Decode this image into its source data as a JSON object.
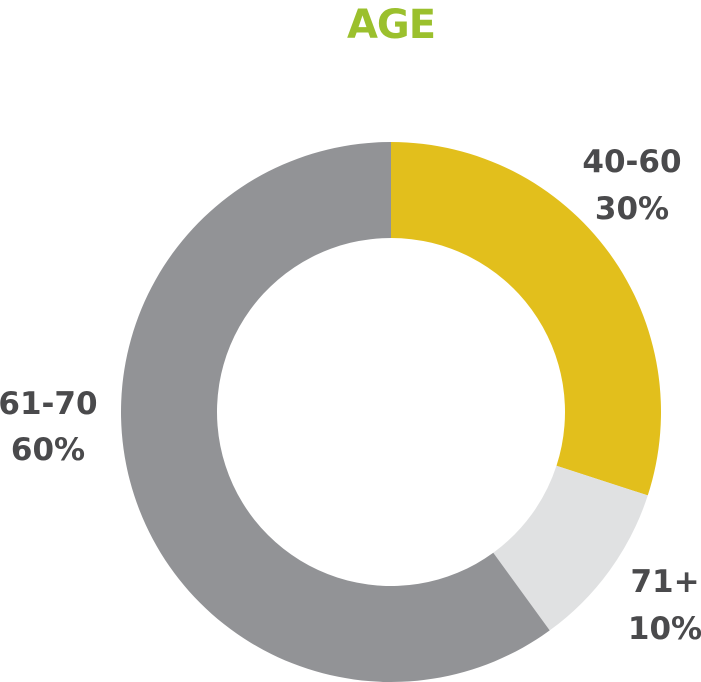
{
  "colors": {
    "title": "#9bc02d",
    "label_text": "#4a4a4c"
  },
  "chart_data": {
    "type": "pie",
    "style": "donut",
    "title": "AGE",
    "start_angle": "12 o'clock, clockwise",
    "slices": [
      {
        "category": "40-60",
        "value": 30,
        "display": "30%",
        "color": "#e2bf1c"
      },
      {
        "category": "71+",
        "value": 10,
        "display": "10%",
        "color": "#e0e1e2"
      },
      {
        "category": "61-70",
        "value": 60,
        "display": "60%",
        "color": "#929396"
      }
    ],
    "legend": "none"
  }
}
